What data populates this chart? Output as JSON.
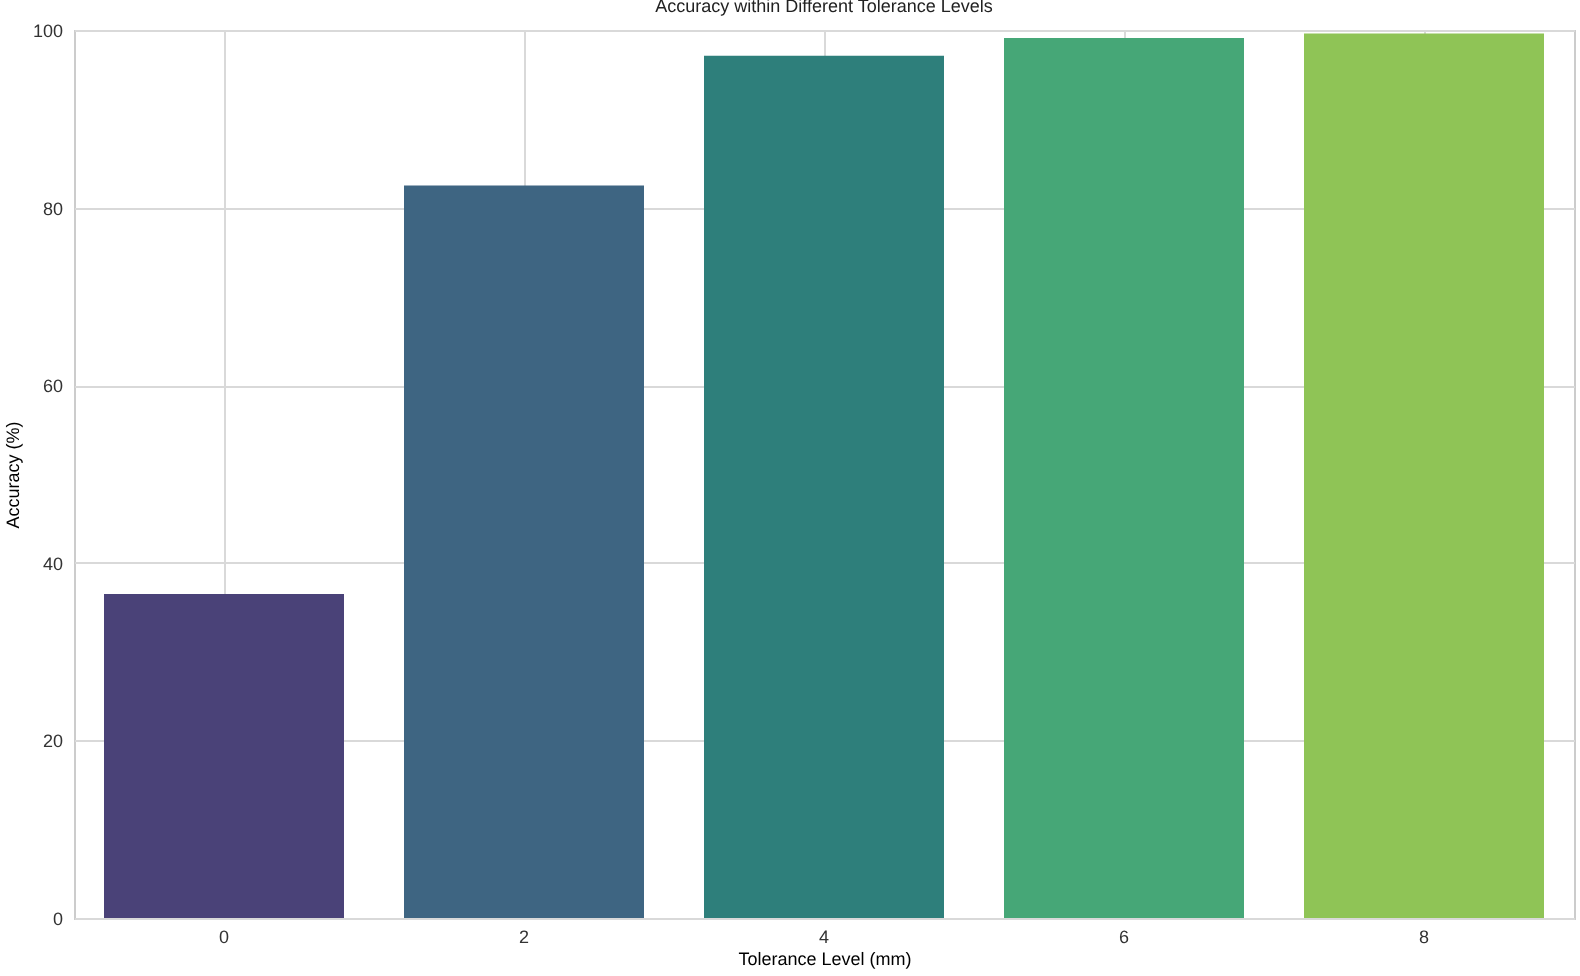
{
  "chart_data": {
    "type": "bar",
    "title": "Accuracy within Different Tolerance Levels",
    "xlabel": "Tolerance Level (mm)",
    "ylabel": "Accuracy (%)",
    "categories": [
      "0",
      "2",
      "4",
      "6",
      "8"
    ],
    "values": [
      36.5,
      82.5,
      97.1,
      99.1,
      99.6
    ],
    "colors": [
      "#4a4278",
      "#3e6582",
      "#2e7f7b",
      "#46a777",
      "#8fc456"
    ],
    "ylim": [
      0,
      100
    ],
    "yticks": [
      0,
      20,
      40,
      60,
      80,
      100
    ],
    "grid": true
  }
}
